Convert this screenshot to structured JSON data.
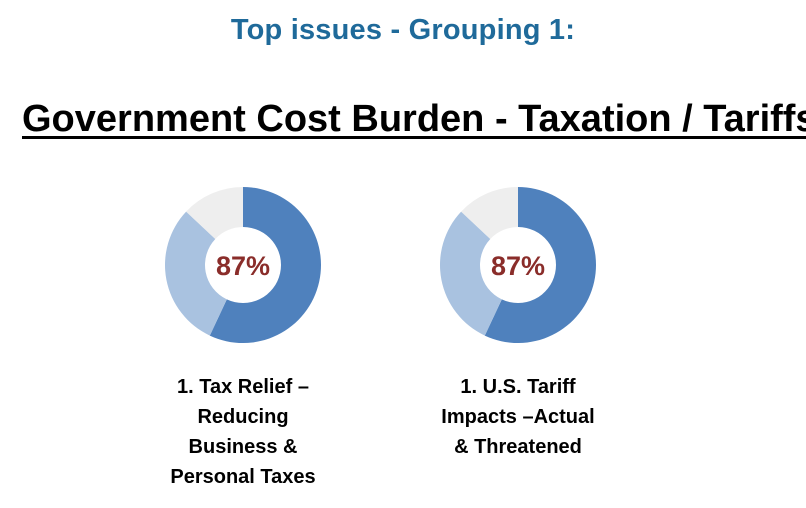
{
  "header": {
    "heading": "Top issues - Grouping 1:",
    "title": "Government Cost Burden - Taxation / Tariffs"
  },
  "colors": {
    "heading": "#1f6a9a",
    "primary_segment": "#4f81bd",
    "secondary_segment": "#a9c2e0",
    "remainder_segment": "#eeeeee",
    "percent_text": "#8a2d2a"
  },
  "chart_data": [
    {
      "type": "pie",
      "center_label": "87%",
      "values": [
        0.57,
        0.3,
        0.13
      ],
      "label_lines": [
        "1. Tax Relief –",
        "Reducing",
        "Business &",
        "Personal Taxes"
      ]
    },
    {
      "type": "pie",
      "center_label": "87%",
      "values": [
        0.57,
        0.3,
        0.13
      ],
      "label_lines": [
        "1. U.S. Tariff",
        "Impacts –Actual",
        "& Threatened"
      ]
    }
  ]
}
